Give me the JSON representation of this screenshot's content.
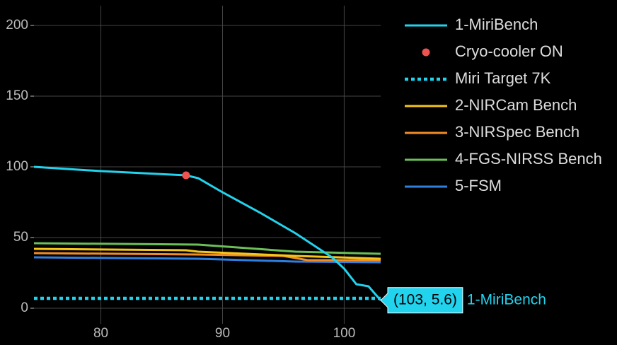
{
  "chart_data": {
    "type": "line",
    "xlim": [
      74.5,
      103
    ],
    "xticks": [
      80,
      90,
      100
    ],
    "ylim": [
      -11,
      214
    ],
    "yticks": [
      0,
      50,
      100,
      150,
      200
    ],
    "grid": true,
    "legend": "right",
    "series": [
      {
        "name": "1-MiriBench",
        "color": "#22d3ee",
        "mode": "lines",
        "x": [
          74.5,
          80,
          87,
          88,
          90,
          93,
          96,
          99,
          100,
          101,
          102,
          103
        ],
        "values": [
          100,
          97,
          94,
          92,
          82,
          68,
          53,
          36,
          28,
          17,
          15.5,
          5.6
        ]
      },
      {
        "name": "Cryo-cooler ON",
        "color": "#ef5350",
        "mode": "markers",
        "x": [
          87
        ],
        "values": [
          94
        ]
      },
      {
        "name": "Miri Target 7K",
        "color": "#22d3ee",
        "mode": "lines",
        "dash": "dot",
        "x": [
          74.5,
          103
        ],
        "values": [
          7,
          7
        ]
      },
      {
        "name": "2-NIRCam Bench",
        "color": "#f5c518",
        "mode": "lines",
        "x": [
          74.5,
          87,
          88,
          96,
          103
        ],
        "values": [
          42,
          41,
          40,
          37,
          35
        ]
      },
      {
        "name": "3-NIRSpec Bench",
        "color": "#f28c28",
        "mode": "lines",
        "x": [
          74.5,
          88,
          95,
          97,
          103
        ],
        "values": [
          39,
          38,
          37,
          34,
          34
        ]
      },
      {
        "name": "4-FGS-NIRSS Bench",
        "color": "#6abf59",
        "mode": "lines",
        "x": [
          74.5,
          88,
          96,
          103
        ],
        "values": [
          46,
          45,
          40,
          38.5
        ]
      },
      {
        "name": "5-FSM",
        "color": "#2f7fe0",
        "mode": "lines",
        "x": [
          74.5,
          88,
          96,
          103
        ],
        "values": [
          36,
          35,
          33,
          32.5
        ]
      }
    ],
    "hover": {
      "x": 103,
      "y": 5.6,
      "text": "(103, 5.6)",
      "name": "1-MiriBench"
    }
  }
}
